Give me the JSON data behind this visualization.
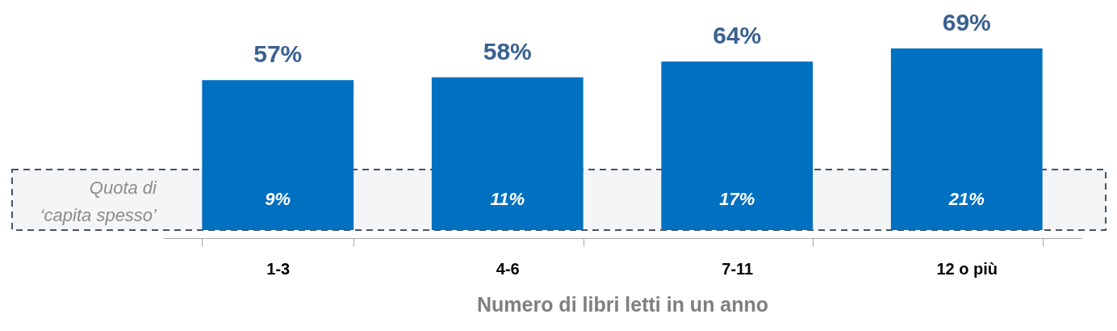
{
  "chart_data": {
    "type": "bar",
    "xlabel": "Numero di libri letti in un anno",
    "categories": [
      "1-3",
      "4-6",
      "7-11",
      "12 o più"
    ],
    "values": [
      57,
      58,
      64,
      69
    ],
    "color": "#0070c0",
    "value_labels": [
      "57%",
      "58%",
      "64%",
      "69%"
    ],
    "bands": [
      {
        "axis": "y",
        "from": 0,
        "to": 23,
        "label": "Quota di\n‘capita spesso’",
        "color": "#44546a"
      }
    ],
    "annotations": [
      "9%",
      "11%",
      "17%",
      "21%"
    ],
    "grid": false
  }
}
